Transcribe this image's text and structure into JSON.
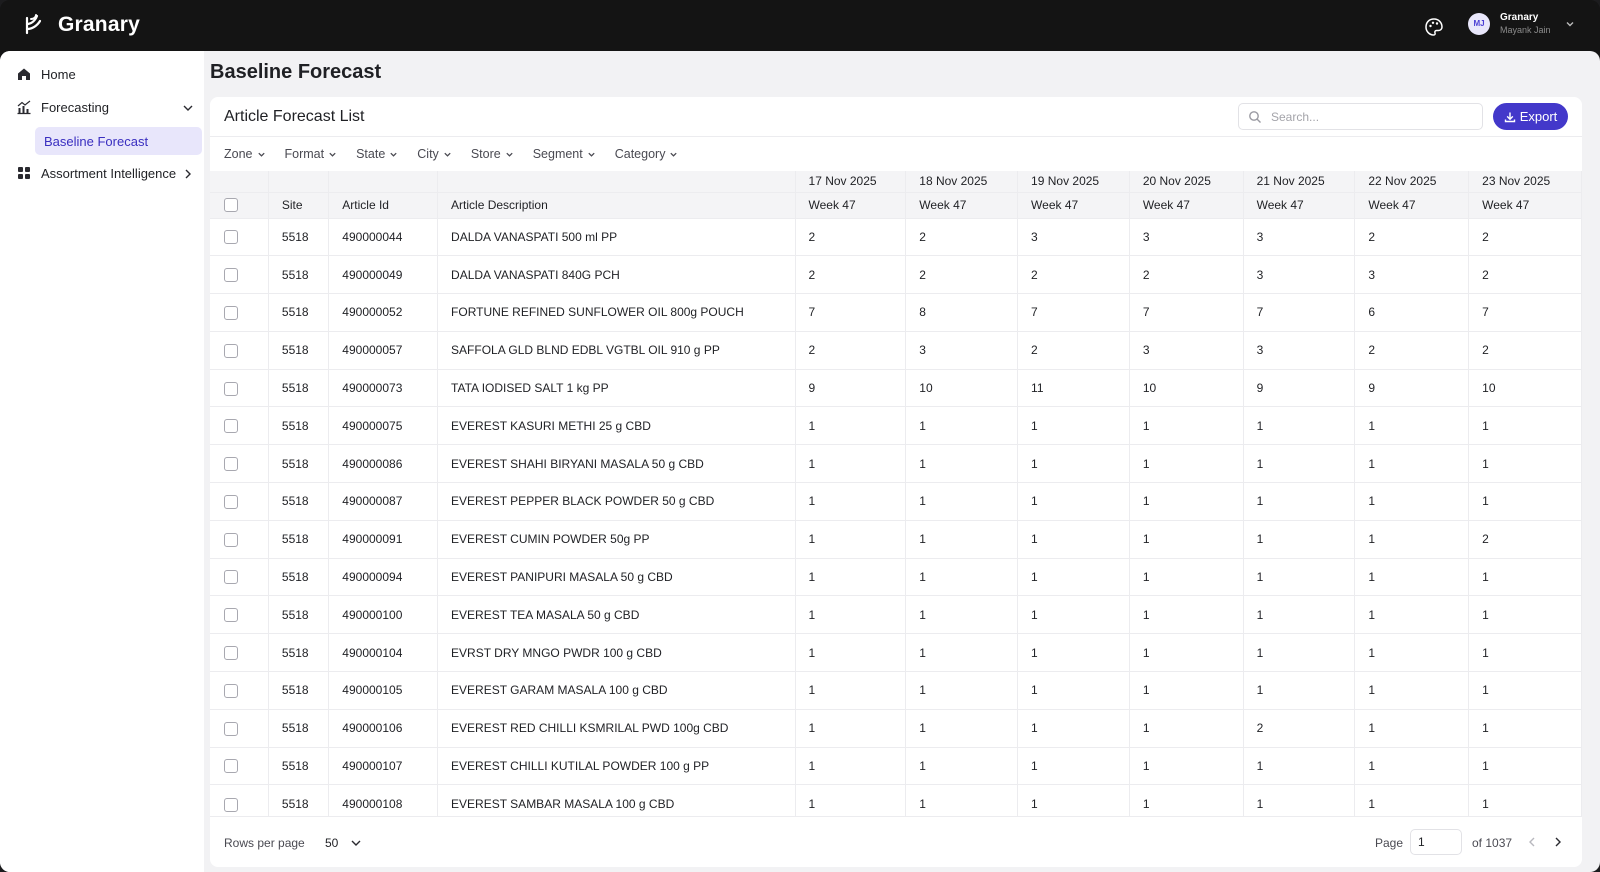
{
  "app": {
    "name": "Granary"
  },
  "user": {
    "initials": "MJ",
    "org": "Granary",
    "name": "Mayank Jain"
  },
  "sidebar": {
    "items": [
      {
        "label": "Home",
        "icon": "home-icon"
      },
      {
        "label": "Forecasting",
        "icon": "chart-icon",
        "expanded": true
      },
      {
        "label": "Baseline Forecast",
        "active": true
      },
      {
        "label": "Assortment Intelligence",
        "icon": "grid-icon"
      }
    ]
  },
  "page": {
    "title": "Baseline Forecast"
  },
  "card": {
    "title": "Article Forecast List",
    "search_placeholder": "Search...",
    "export_label": "Export"
  },
  "filters": [
    "Zone",
    "Format",
    "State",
    "City",
    "Store",
    "Segment",
    "Category"
  ],
  "table": {
    "columns": [
      "Site",
      "Article Id",
      "Article Description"
    ],
    "dates": [
      {
        "date": "17 Nov 2025",
        "week": "Week 47"
      },
      {
        "date": "18 Nov 2025",
        "week": "Week 47"
      },
      {
        "date": "19 Nov 2025",
        "week": "Week 47"
      },
      {
        "date": "20 Nov 2025",
        "week": "Week 47"
      },
      {
        "date": "21 Nov 2025",
        "week": "Week 47"
      },
      {
        "date": "22 Nov 2025",
        "week": "Week 47"
      },
      {
        "date": "23 Nov 2025",
        "week": "Week 47"
      }
    ],
    "rows": [
      {
        "site": "5518",
        "article_id": "490000044",
        "description": "DALDA VANASPATI 500 ml PP",
        "values": [
          2,
          2,
          3,
          3,
          3,
          2,
          2
        ]
      },
      {
        "site": "5518",
        "article_id": "490000049",
        "description": "DALDA VANASPATI 840G PCH",
        "values": [
          2,
          2,
          2,
          2,
          3,
          3,
          2
        ]
      },
      {
        "site": "5518",
        "article_id": "490000052",
        "description": "FORTUNE REFINED SUNFLOWER OIL 800g POUCH",
        "values": [
          7,
          8,
          7,
          7,
          7,
          6,
          7
        ]
      },
      {
        "site": "5518",
        "article_id": "490000057",
        "description": "SAFFOLA GLD BLND EDBL VGTBL OIL 910 g PP",
        "values": [
          2,
          3,
          2,
          3,
          3,
          2,
          2
        ]
      },
      {
        "site": "5518",
        "article_id": "490000073",
        "description": "TATA IODISED SALT 1 kg PP",
        "values": [
          9,
          10,
          11,
          10,
          9,
          9,
          10
        ]
      },
      {
        "site": "5518",
        "article_id": "490000075",
        "description": "EVEREST KASURI METHI 25 g CBD",
        "values": [
          1,
          1,
          1,
          1,
          1,
          1,
          1
        ]
      },
      {
        "site": "5518",
        "article_id": "490000086",
        "description": "EVEREST SHAHI BIRYANI MASALA 50 g CBD",
        "values": [
          1,
          1,
          1,
          1,
          1,
          1,
          1
        ]
      },
      {
        "site": "5518",
        "article_id": "490000087",
        "description": "EVEREST PEPPER BLACK POWDER 50 g CBD",
        "values": [
          1,
          1,
          1,
          1,
          1,
          1,
          1
        ]
      },
      {
        "site": "5518",
        "article_id": "490000091",
        "description": "EVEREST CUMIN POWDER 50g PP",
        "values": [
          1,
          1,
          1,
          1,
          1,
          1,
          2
        ]
      },
      {
        "site": "5518",
        "article_id": "490000094",
        "description": "EVEREST PANIPURI MASALA 50 g CBD",
        "values": [
          1,
          1,
          1,
          1,
          1,
          1,
          1
        ]
      },
      {
        "site": "5518",
        "article_id": "490000100",
        "description": "EVEREST TEA MASALA 50 g CBD",
        "values": [
          1,
          1,
          1,
          1,
          1,
          1,
          1
        ]
      },
      {
        "site": "5518",
        "article_id": "490000104",
        "description": "EVRST DRY MNGO PWDR 100 g CBD",
        "values": [
          1,
          1,
          1,
          1,
          1,
          1,
          1
        ]
      },
      {
        "site": "5518",
        "article_id": "490000105",
        "description": "EVEREST GARAM MASALA 100 g CBD",
        "values": [
          1,
          1,
          1,
          1,
          1,
          1,
          1
        ]
      },
      {
        "site": "5518",
        "article_id": "490000106",
        "description": "EVEREST RED CHILLI KSMRILAL PWD 100g CBD",
        "values": [
          1,
          1,
          1,
          1,
          2,
          1,
          1
        ]
      },
      {
        "site": "5518",
        "article_id": "490000107",
        "description": "EVEREST CHILLI KUTILAL POWDER 100 g PP",
        "values": [
          1,
          1,
          1,
          1,
          1,
          1,
          1
        ]
      },
      {
        "site": "5518",
        "article_id": "490000108",
        "description": "EVEREST SAMBAR MASALA 100 g CBD",
        "values": [
          1,
          1,
          1,
          1,
          1,
          1,
          1
        ]
      }
    ]
  },
  "pagination": {
    "rows_label": "Rows per page",
    "rows_value": "50",
    "page_label": "Page",
    "page_value": "1",
    "of_label": "of 1037"
  },
  "colors": {
    "accent": "#4338ca",
    "topbar": "#141414",
    "active_bg": "#e8e6fb"
  }
}
